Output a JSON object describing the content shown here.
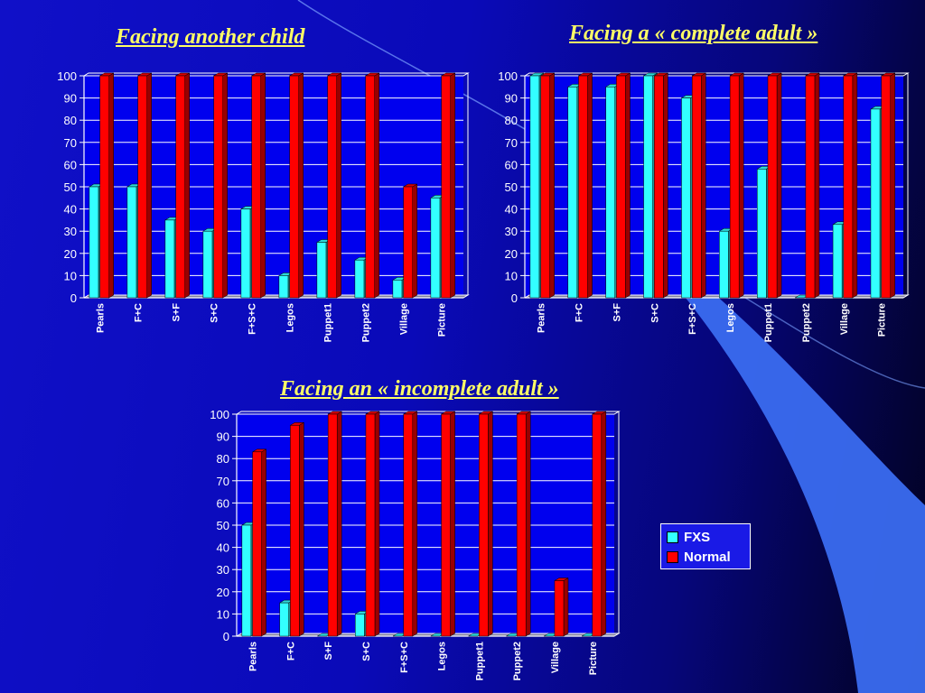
{
  "colors": {
    "fxs": "#33ffff",
    "normal": "#ff0000",
    "title": "#ffff66"
  },
  "legend": [
    {
      "label": "FXS",
      "color": "#33ffff"
    },
    {
      "label": "Normal",
      "color": "#ff0000"
    }
  ],
  "chart_data": [
    {
      "type": "bar",
      "title": "Facing another child",
      "categories": [
        "Pearls",
        "F+C",
        "S+F",
        "S+C",
        "F+S+C",
        "Legos",
        "Puppet1",
        "Puppet2",
        "Village",
        "Picture"
      ],
      "series": [
        {
          "name": "FXS",
          "values": [
            50,
            50,
            35,
            30,
            40,
            10,
            25,
            17,
            8,
            45
          ]
        },
        {
          "name": "Normal",
          "values": [
            100,
            100,
            100,
            100,
            100,
            100,
            100,
            100,
            50,
            100
          ]
        }
      ],
      "ylim": [
        0,
        100
      ],
      "yticks": [
        0,
        10,
        20,
        30,
        40,
        50,
        60,
        70,
        80,
        90,
        100
      ],
      "grid": true
    },
    {
      "type": "bar",
      "title": "Facing a « complete adult »",
      "categories": [
        "Pearls",
        "F+C",
        "S+F",
        "S+C",
        "F+S+C",
        "Legos",
        "Puppet1",
        "Puppet2",
        "Village",
        "Picture"
      ],
      "series": [
        {
          "name": "FXS",
          "values": [
            100,
            95,
            95,
            100,
            90,
            30,
            58,
            0,
            33,
            85
          ]
        },
        {
          "name": "Normal",
          "values": [
            100,
            100,
            100,
            100,
            100,
            100,
            100,
            100,
            100,
            100
          ]
        }
      ],
      "ylim": [
        0,
        100
      ],
      "yticks": [
        0,
        10,
        20,
        30,
        40,
        50,
        60,
        70,
        80,
        90,
        100
      ],
      "grid": true
    },
    {
      "type": "bar",
      "title": "Facing an « incomplete adult »",
      "categories": [
        "Pearls",
        "F+C",
        "S+F",
        "S+C",
        "F+S+C",
        "Legos",
        "Puppet1",
        "Puppet2",
        "Village",
        "Picture"
      ],
      "series": [
        {
          "name": "FXS",
          "values": [
            50,
            15,
            0,
            10,
            0,
            0,
            0,
            0,
            0,
            0
          ]
        },
        {
          "name": "Normal",
          "values": [
            83,
            95,
            100,
            100,
            100,
            100,
            100,
            100,
            25,
            100
          ]
        }
      ],
      "ylim": [
        0,
        100
      ],
      "yticks": [
        0,
        10,
        20,
        30,
        40,
        50,
        60,
        70,
        80,
        90,
        100
      ],
      "grid": true,
      "legend_position": "right"
    }
  ]
}
